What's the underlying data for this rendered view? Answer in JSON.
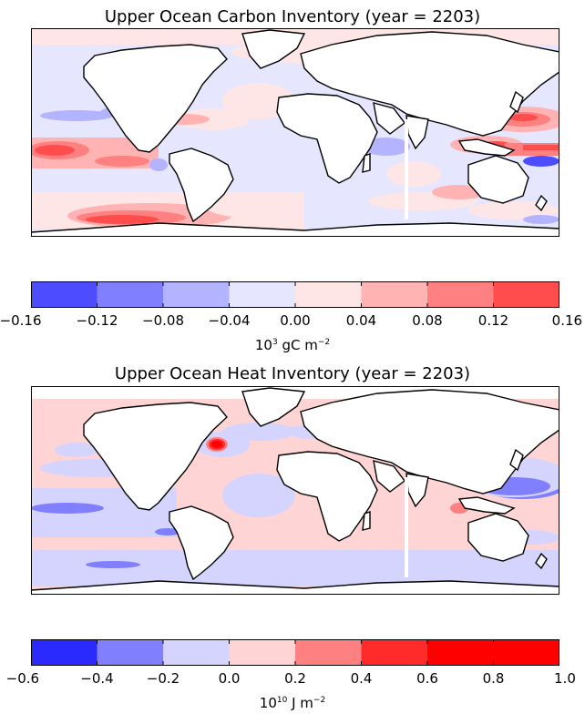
{
  "maps": [
    {
      "title": "Upper Ocean Carbon Inventory (year = 2203)",
      "colorbar": {
        "ticks": [
          "−0.16",
          "−0.12",
          "−0.08",
          "−0.04",
          "0.00",
          "0.04",
          "0.08",
          "0.12",
          "0.16"
        ],
        "colors": [
          "#4d4dff",
          "#8080ff",
          "#b3b3ff",
          "#e6e6ff",
          "#ffe6e6",
          "#ffb3b3",
          "#ff8080",
          "#ff4d4d"
        ],
        "unit_base": "10",
        "unit_exp": "3",
        "unit_rest": " gC m",
        "unit_rest_exp": "−2"
      }
    },
    {
      "title": "Upper Ocean Heat Inventory (year = 2203)",
      "colorbar": {
        "ticks": [
          "−0.6",
          "−0.4",
          "−0.2",
          "0.0",
          "0.2",
          "0.4",
          "0.6",
          "0.8",
          "1.0"
        ],
        "colors": [
          "#2a2aff",
          "#8080ff",
          "#d4d4ff",
          "#ffd4d4",
          "#ff8080",
          "#ff2a2a",
          "#ff0000",
          "#ff0000"
        ],
        "unit_base": "10",
        "unit_exp": "10",
        "unit_rest": " J m",
        "unit_rest_exp": "−2"
      }
    }
  ]
}
